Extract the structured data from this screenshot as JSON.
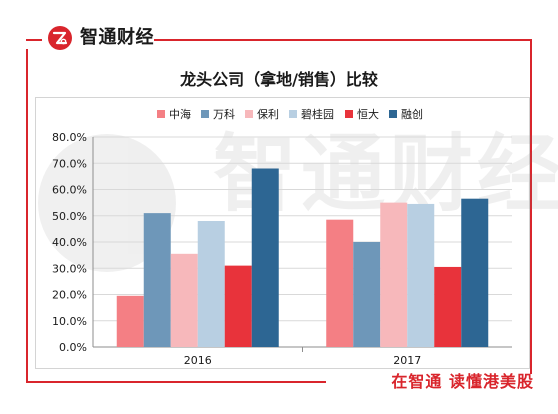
{
  "brand": {
    "name": "智通财经"
  },
  "footer": {
    "slogan": "在智通 读懂港美股"
  },
  "watermark": {
    "text": "智通财经"
  },
  "colors": {
    "frame": "#d9252c",
    "grid": "#d9d9d9",
    "axis": "#8e8e8e",
    "text": "#1a1a1a"
  },
  "chart_data": {
    "type": "bar",
    "title": "龙头公司（拿地/销售）比较",
    "categories": [
      "2016",
      "2017"
    ],
    "series": [
      {
        "name": "中海",
        "values": [
          19.5,
          48.5
        ],
        "color": "#f47f84"
      },
      {
        "name": "万科",
        "values": [
          51.0,
          40.0
        ],
        "color": "#6e97b9"
      },
      {
        "name": "保利",
        "values": [
          35.5,
          55.0
        ],
        "color": "#f7b8bb"
      },
      {
        "name": "碧桂园",
        "values": [
          48.0,
          54.5
        ],
        "color": "#b8cfe2"
      },
      {
        "name": "恒大",
        "values": [
          31.0,
          30.5
        ],
        "color": "#e8333b"
      },
      {
        "name": "融创",
        "values": [
          68.0,
          56.5
        ],
        "color": "#2d6693"
      }
    ],
    "ylim": [
      0,
      80
    ],
    "yticks": [
      "0.0%",
      "10.0%",
      "20.0%",
      "30.0%",
      "40.0%",
      "50.0%",
      "60.0%",
      "70.0%",
      "80.0%"
    ],
    "grid": true,
    "legend": "top"
  }
}
